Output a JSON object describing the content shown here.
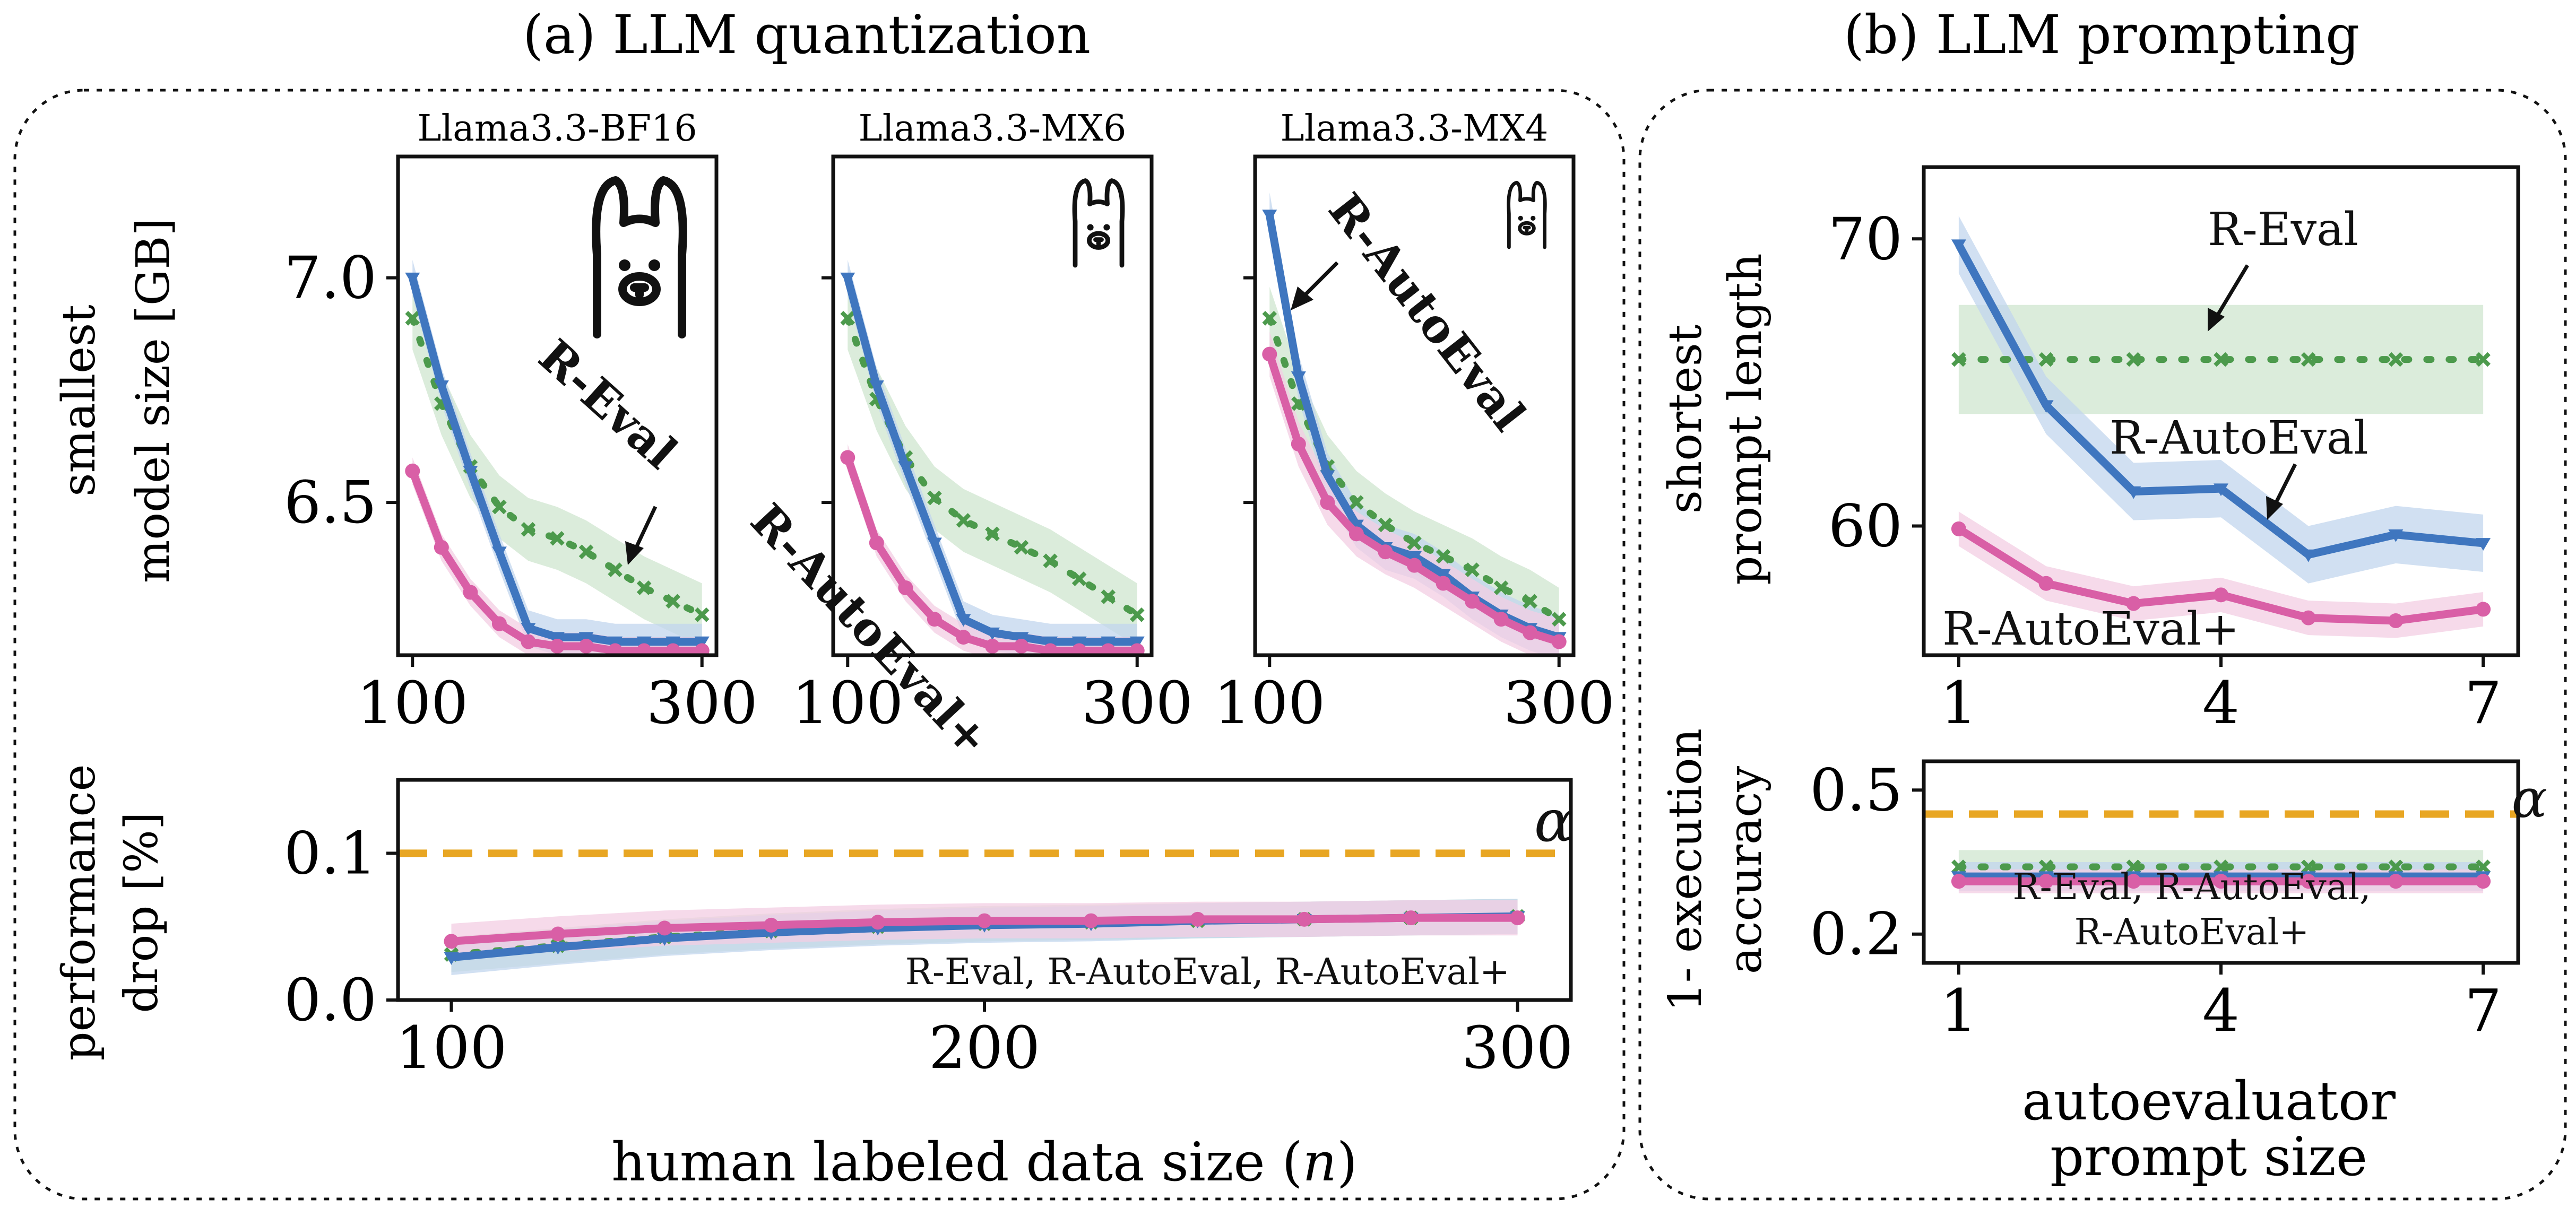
{
  "colors": {
    "eval": "#4c9a4c",
    "eval_band": "#cfe6cf",
    "auto": "#3f76bf",
    "auto_band": "#c2d6ee",
    "autoplus": "#d95fa6",
    "autoplus_band": "#f3cde3",
    "alpha": "#e8a623",
    "frame": "#111111"
  },
  "panel_a": {
    "title": "(a) LLM quantization",
    "ylabel_top": [
      "smallest",
      "model size [GB]"
    ],
    "ylabel_bottom": [
      "performance",
      "drop [%]"
    ],
    "xlabel_bottom": "human labeled data size (",
    "xlabel_var": "n",
    "xlabel_close": ")",
    "annotation_eval": "R-Eval",
    "annotation_autoplus": "R-AutoEval+",
    "annotation_auto": "R-AutoEval",
    "annotation_bottom": "R-Eval, R-AutoEval, R-AutoEval+",
    "alpha_label": "α"
  },
  "panel_b": {
    "title": "(b) LLM prompting",
    "ylabel_top": [
      "shortest",
      "prompt length"
    ],
    "ylabel_bottom": [
      "1- execution",
      "accuracy"
    ],
    "xlabel": [
      "autoevaluator",
      "prompt size"
    ],
    "annotation_eval": "R-Eval",
    "annotation_auto": "R-AutoEval",
    "annotation_autoplus": "R-AutoEval+",
    "annotation_bottom": [
      "R-Eval, R-AutoEval,",
      "R-AutoEval+"
    ],
    "alpha_label": "α"
  },
  "chart_data": [
    {
      "id": "a-bf16",
      "type": "line",
      "title": "Llama3.3-BF16",
      "xlim": [
        90,
        310
      ],
      "ylim": [
        6.16,
        7.27
      ],
      "xticks": [
        "100",
        "300"
      ],
      "yticks": [
        "6.5",
        "7.0"
      ],
      "x": [
        100,
        120,
        140,
        160,
        180,
        200,
        220,
        240,
        260,
        280,
        300
      ],
      "series": [
        {
          "name": "R-Eval",
          "values": [
            6.91,
            6.72,
            6.58,
            6.49,
            6.44,
            6.42,
            6.39,
            6.35,
            6.31,
            6.28,
            6.25
          ],
          "band": 0.07
        },
        {
          "name": "R-AutoEval",
          "values": [
            7.0,
            6.76,
            6.57,
            6.39,
            6.22,
            6.2,
            6.2,
            6.19,
            6.19,
            6.19,
            6.19
          ],
          "band": 0.04
        },
        {
          "name": "R-AutoEval+",
          "values": [
            6.57,
            6.4,
            6.3,
            6.23,
            6.19,
            6.18,
            6.18,
            6.17,
            6.17,
            6.17,
            6.17
          ],
          "band": 0.03
        }
      ]
    },
    {
      "id": "a-mx6",
      "type": "line",
      "title": "Llama3.3-MX6",
      "xlim": [
        90,
        310
      ],
      "ylim": [
        6.16,
        7.27
      ],
      "xticks": [
        "100",
        "300"
      ],
      "yticks": [],
      "x": [
        100,
        120,
        140,
        160,
        180,
        200,
        220,
        240,
        260,
        280,
        300
      ],
      "series": [
        {
          "name": "R-Eval",
          "values": [
            6.91,
            6.73,
            6.6,
            6.51,
            6.46,
            6.43,
            6.4,
            6.37,
            6.33,
            6.29,
            6.25
          ],
          "band": 0.07
        },
        {
          "name": "R-AutoEval",
          "values": [
            7.0,
            6.76,
            6.58,
            6.41,
            6.24,
            6.21,
            6.2,
            6.19,
            6.19,
            6.19,
            6.19
          ],
          "band": 0.04
        },
        {
          "name": "R-AutoEval+",
          "values": [
            6.6,
            6.41,
            6.31,
            6.24,
            6.2,
            6.18,
            6.18,
            6.17,
            6.17,
            6.17,
            6.17
          ],
          "band": 0.03
        }
      ]
    },
    {
      "id": "a-mx4",
      "type": "line",
      "title": "Llama3.3-MX4",
      "xlim": [
        90,
        310
      ],
      "ylim": [
        6.16,
        7.27
      ],
      "xticks": [
        "100",
        "300"
      ],
      "yticks": [],
      "x": [
        100,
        120,
        140,
        160,
        180,
        200,
        220,
        240,
        260,
        280,
        300
      ],
      "series": [
        {
          "name": "R-Eval",
          "values": [
            6.91,
            6.72,
            6.58,
            6.5,
            6.45,
            6.41,
            6.38,
            6.35,
            6.31,
            6.28,
            6.24
          ],
          "band": 0.07
        },
        {
          "name": "R-AutoEval",
          "values": [
            7.14,
            6.78,
            6.56,
            6.45,
            6.4,
            6.38,
            6.34,
            6.29,
            6.25,
            6.22,
            6.2
          ],
          "band": 0.05
        },
        {
          "name": "R-AutoEval+",
          "values": [
            6.83,
            6.63,
            6.5,
            6.43,
            6.39,
            6.36,
            6.32,
            6.28,
            6.24,
            6.21,
            6.19
          ],
          "band": 0.05
        }
      ]
    },
    {
      "id": "a-drop",
      "type": "line",
      "xlim": [
        90,
        310
      ],
      "ylim": [
        0.0,
        0.15
      ],
      "xticks": [
        "100",
        "200",
        "300"
      ],
      "yticks": [
        "0.0",
        "0.1"
      ],
      "alpha": 0.1,
      "x": [
        100,
        120,
        140,
        160,
        180,
        200,
        220,
        240,
        260,
        280,
        300
      ],
      "series": [
        {
          "name": "R-Eval",
          "values": [
            0.031,
            0.037,
            0.043,
            0.047,
            0.05,
            0.052,
            0.053,
            0.054,
            0.055,
            0.056,
            0.057
          ],
          "band": 0.012
        },
        {
          "name": "R-AutoEval",
          "values": [
            0.029,
            0.036,
            0.042,
            0.046,
            0.049,
            0.051,
            0.052,
            0.054,
            0.055,
            0.056,
            0.057
          ],
          "band": 0.012
        },
        {
          "name": "R-AutoEval+",
          "values": [
            0.04,
            0.045,
            0.049,
            0.051,
            0.053,
            0.054,
            0.054,
            0.055,
            0.055,
            0.056,
            0.056
          ],
          "band": 0.012
        }
      ]
    },
    {
      "id": "b-len",
      "type": "line",
      "xlim": [
        0.6,
        7.4
      ],
      "ylim": [
        55.5,
        72.5
      ],
      "xticks": [
        "1",
        "4",
        "7"
      ],
      "yticks": [
        "60",
        "70"
      ],
      "x": [
        1,
        2,
        3,
        4,
        5,
        6,
        7
      ],
      "series": [
        {
          "name": "R-Eval",
          "values": [
            65.8,
            65.8,
            65.8,
            65.8,
            65.8,
            65.8,
            65.8
          ],
          "band": 1.9
        },
        {
          "name": "R-AutoEval",
          "values": [
            69.8,
            64.2,
            61.2,
            61.3,
            59.0,
            59.7,
            59.4
          ],
          "band": 1.0
        },
        {
          "name": "R-AutoEval+",
          "values": [
            59.9,
            58.0,
            57.3,
            57.6,
            56.8,
            56.7,
            57.1
          ],
          "band": 0.6
        }
      ]
    },
    {
      "id": "b-acc",
      "type": "line",
      "xlim": [
        0.6,
        7.4
      ],
      "ylim": [
        0.14,
        0.56
      ],
      "xticks": [
        "1",
        "4",
        "7"
      ],
      "yticks": [
        "0.2",
        "0.5"
      ],
      "alpha": 0.45,
      "x": [
        1,
        2,
        3,
        4,
        5,
        6,
        7
      ],
      "series": [
        {
          "name": "R-Eval",
          "values": [
            0.34,
            0.34,
            0.34,
            0.34,
            0.34,
            0.34,
            0.34
          ],
          "band": 0.035
        },
        {
          "name": "R-AutoEval",
          "values": [
            0.32,
            0.32,
            0.32,
            0.32,
            0.32,
            0.32,
            0.32
          ],
          "band": 0.03
        },
        {
          "name": "R-AutoEval+",
          "values": [
            0.31,
            0.31,
            0.31,
            0.31,
            0.31,
            0.31,
            0.31
          ],
          "band": 0.025
        }
      ]
    }
  ]
}
